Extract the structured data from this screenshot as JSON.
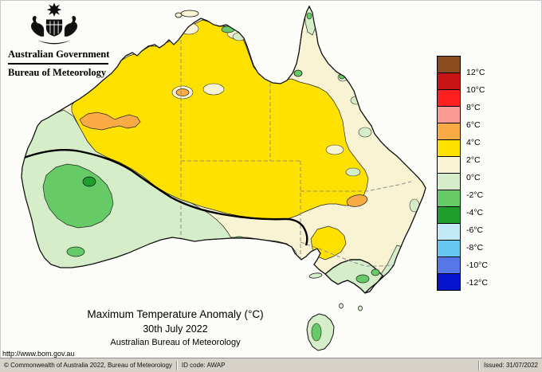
{
  "header": {
    "government": "Australian Government",
    "bureau": "Bureau of Meteorology"
  },
  "titles": {
    "title": "Maximum Temperature Anomaly (°C)",
    "date": "30th July 2022",
    "attribution": "Australian Bureau of Meteorology"
  },
  "url": "http://www.bom.gov.au",
  "legend": {
    "labels": [
      "12°C",
      "10°C",
      "8°C",
      "6°C",
      "4°C",
      "2°C",
      "0°C",
      "-2°C",
      "-4°C",
      "-6°C",
      "-8°C",
      "-10°C",
      "-12°C"
    ],
    "colors": [
      "#8A4B1F",
      "#C81414",
      "#FF2020",
      "#FB9B96",
      "#FAAB45",
      "#FFE100",
      "#F8F3D2",
      "#D5EDC8",
      "#66CB66",
      "#1F9E2C",
      "#C3E9F7",
      "#66C8F2",
      "#5577E8",
      "#0714CE"
    ]
  },
  "map_palette": {
    "plus4_to_6_orange": "#FAAB45",
    "plus2_to_4_yellow": "#FFE100",
    "zero_to_2_cream": "#F8F3D2",
    "neg2_to_0_pale_green": "#D5EDC8",
    "neg4_to_neg2_green": "#66CB66",
    "neg6_to_neg4_dark_green": "#1F9E2C"
  },
  "statusbar": {
    "copyright": "© Commonwealth of Australia 2022, Bureau of Meteorology",
    "id_code": "ID code: AWAP",
    "issued": "Issued: 31/07/2022"
  }
}
